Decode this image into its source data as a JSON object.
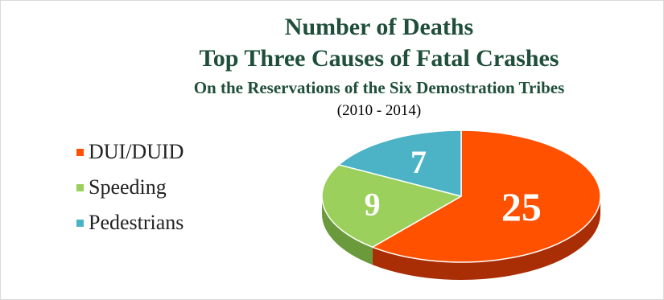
{
  "chart_data": {
    "type": "pie",
    "title": "Number of Deaths",
    "subtitle": "Top Three Causes of Fatal Crashes",
    "subtitle2": "On the Reservations of the Six Demostration Tribes",
    "period": "(2010 - 2014)",
    "legend_position": "left",
    "three_d": true,
    "categories": [
      "DUI/DUID",
      "Speeding",
      "Pedestrians"
    ],
    "values": [
      25,
      9,
      7
    ],
    "data_labels": [
      "25",
      "9",
      "7"
    ],
    "colors": [
      "#ff5100",
      "#9bd05c",
      "#4bb3c5"
    ],
    "side_colors": [
      "#a92e05",
      "#6a9a3c",
      "#2f8593"
    ]
  }
}
